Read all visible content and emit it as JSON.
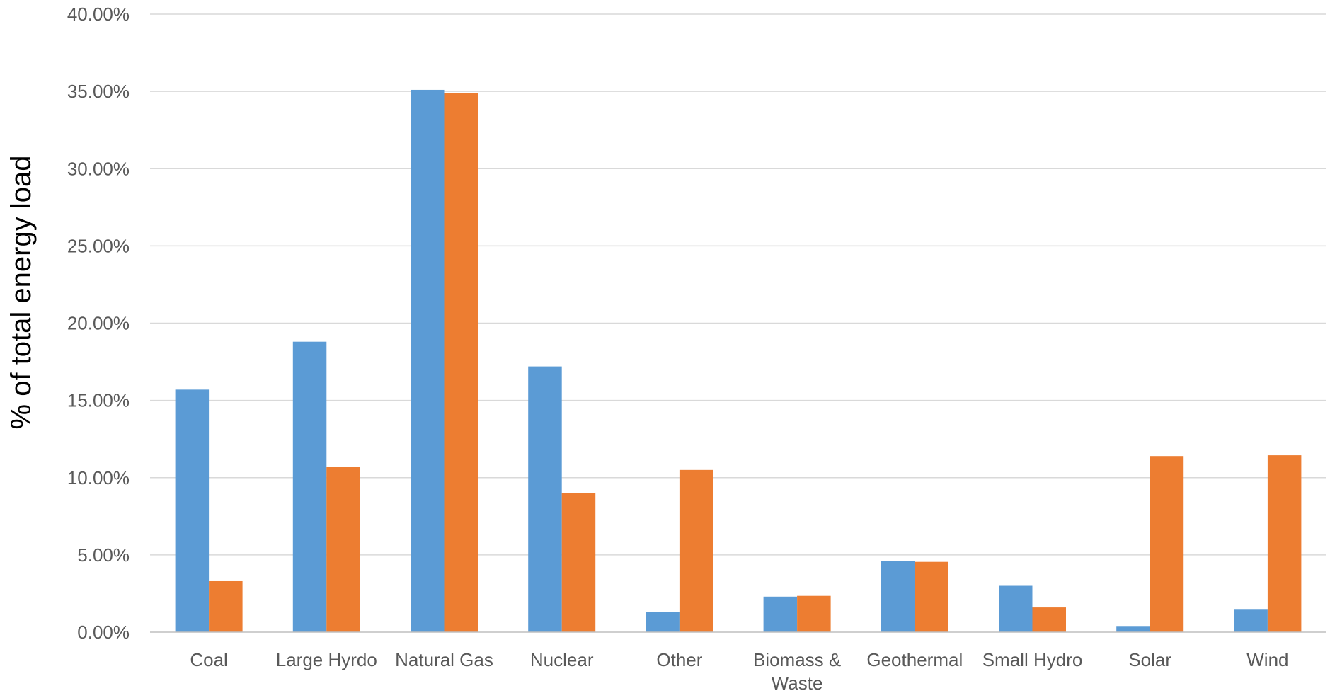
{
  "chart_data": {
    "type": "bar",
    "title": "",
    "xlabel": "",
    "ylabel": "% of total energy load",
    "ylim": [
      0,
      0.4
    ],
    "ytick_labels": [
      "0.00%",
      "5.00%",
      "10.00%",
      "15.00%",
      "20.00%",
      "25.00%",
      "30.00%",
      "35.00%",
      "40.00%"
    ],
    "ytick_values": [
      0,
      0.05,
      0.1,
      0.15,
      0.2,
      0.25,
      0.3,
      0.35,
      0.4
    ],
    "categories": [
      [
        "Coal"
      ],
      [
        "Large Hyrdo"
      ],
      [
        "Natural Gas"
      ],
      [
        "Nuclear"
      ],
      [
        "Other"
      ],
      [
        "Biomass &",
        "Waste"
      ],
      [
        "Geothermal"
      ],
      [
        "Small Hydro"
      ],
      [
        "Solar"
      ],
      [
        "Wind"
      ]
    ],
    "series": [
      {
        "color": "#5b9bd5",
        "values": [
          0.157,
          0.188,
          0.351,
          0.172,
          0.013,
          0.023,
          0.046,
          0.03,
          0.004,
          0.015
        ]
      },
      {
        "color": "#ed7d31",
        "values": [
          0.033,
          0.107,
          0.349,
          0.09,
          0.105,
          0.0235,
          0.0455,
          0.016,
          0.114,
          0.1145
        ]
      }
    ],
    "grid": true,
    "legend": "none"
  }
}
